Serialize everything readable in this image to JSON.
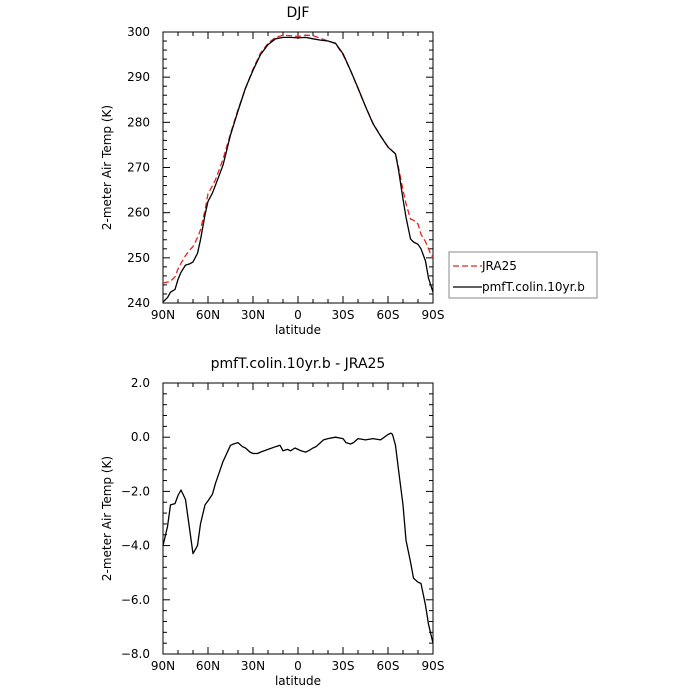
{
  "chart_data": [
    {
      "type": "line",
      "title": "DJF",
      "xlabel": "latitude",
      "ylabel": "2-meter Air Temp (K)",
      "xlim": [
        90,
        -90
      ],
      "ylim": [
        240,
        300
      ],
      "x_ticks": [
        90,
        60,
        30,
        0,
        -30,
        -60,
        -90
      ],
      "x_tick_labels": [
        "90N",
        "60N",
        "30N",
        "0",
        "30S",
        "60S",
        "90S"
      ],
      "y_ticks": [
        240,
        250,
        260,
        270,
        280,
        290,
        300
      ],
      "y_tick_labels": [
        "240",
        "250",
        "260",
        "270",
        "280",
        "290",
        "300"
      ],
      "legend": {
        "placement": "right",
        "entries": [
          "JRA25",
          "pmfT.colin.10yr.b"
        ]
      },
      "series": [
        {
          "name": "JRA25",
          "color": "#e0261e",
          "dash": "dashed",
          "x": [
            90,
            85,
            82,
            80,
            78,
            75,
            72,
            70,
            67,
            65,
            62,
            60,
            57,
            55,
            50,
            45,
            40,
            35,
            30,
            25,
            20,
            15,
            10,
            5,
            0,
            -5,
            -10,
            -15,
            -20,
            -25,
            -30,
            -35,
            -40,
            -45,
            -50,
            -55,
            -60,
            -65,
            -67,
            -70,
            -72,
            -75,
            -77,
            -80,
            -82,
            -85,
            -88,
            -90
          ],
          "y": [
            244.4,
            244.8,
            245.8,
            247.5,
            248.8,
            250.5,
            251.8,
            252.5,
            254.5,
            256.2,
            260.5,
            264.2,
            266.0,
            267.3,
            271.8,
            277.5,
            282.8,
            287.5,
            291.8,
            295.3,
            297.5,
            298.8,
            299.3,
            299.2,
            299.0,
            299.3,
            299.2,
            298.6,
            298.0,
            297.4,
            295.0,
            291.5,
            287.5,
            283.5,
            279.8,
            277.0,
            274.6,
            273.0,
            270.0,
            265.0,
            262.0,
            258.6,
            258.3,
            257.5,
            255.2,
            253.6,
            251.2,
            250.0
          ]
        },
        {
          "name": "pmfT.colin.10yr.b",
          "color": "#000000",
          "dash": "solid",
          "x": [
            90,
            87,
            85,
            82,
            80,
            78,
            75,
            72,
            70,
            67,
            65,
            62,
            60,
            57,
            55,
            50,
            45,
            40,
            35,
            30,
            25,
            20,
            15,
            10,
            5,
            0,
            -5,
            -10,
            -15,
            -20,
            -25,
            -30,
            -35,
            -40,
            -45,
            -50,
            -55,
            -60,
            -63,
            -65,
            -67,
            -70,
            -72,
            -75,
            -77,
            -80,
            -82,
            -85,
            -87,
            -90
          ],
          "y": [
            240.2,
            241.2,
            242.4,
            243.0,
            245.2,
            246.8,
            248.4,
            248.7,
            249.1,
            251.0,
            254.0,
            259.5,
            262.5,
            264.4,
            266.1,
            270.5,
            277.2,
            282.5,
            287.6,
            291.5,
            295.0,
            297.2,
            298.5,
            298.8,
            298.8,
            298.7,
            298.8,
            298.5,
            298.2,
            298.0,
            297.5,
            295.2,
            291.5,
            287.6,
            283.5,
            279.7,
            277.0,
            274.5,
            273.6,
            273.0,
            269.5,
            263.0,
            259.0,
            254.2,
            253.5,
            253.0,
            252.0,
            249.3,
            245.5,
            242.4
          ]
        }
      ]
    },
    {
      "type": "line",
      "title": "pmfT.colin.10yr.b - JRA25",
      "xlabel": "latitude",
      "ylabel": "2-meter Air Temp (K)",
      "xlim": [
        90,
        -90
      ],
      "ylim": [
        -8,
        2
      ],
      "x_ticks": [
        90,
        60,
        30,
        0,
        -30,
        -60,
        -90
      ],
      "x_tick_labels": [
        "90N",
        "60N",
        "30N",
        "0",
        "30S",
        "60S",
        "90S"
      ],
      "y_ticks": [
        -8,
        -6,
        -4,
        -2,
        0,
        2
      ],
      "y_tick_labels": [
        "−8.0",
        "−6.0",
        "−4.0",
        "−2.0",
        "0.0",
        "2.0"
      ],
      "series": [
        {
          "color": "#000000",
          "dash": "solid",
          "x": [
            90,
            87,
            85,
            82,
            80,
            78,
            75,
            72,
            70,
            67,
            65,
            62,
            60,
            57,
            55,
            50,
            45,
            43,
            40,
            37,
            35,
            32,
            30,
            27,
            25,
            20,
            15,
            12,
            10,
            7,
            5,
            2,
            0,
            -2,
            -5,
            -7,
            -10,
            -12,
            -15,
            -17,
            -20,
            -25,
            -30,
            -32,
            -35,
            -37,
            -40,
            -45,
            -50,
            -55,
            -60,
            -62,
            -63,
            -65,
            -67,
            -70,
            -72,
            -75,
            -77,
            -80,
            -82,
            -85,
            -87,
            -90
          ],
          "y": [
            -4.0,
            -3.3,
            -2.5,
            -2.45,
            -2.15,
            -1.95,
            -2.3,
            -3.5,
            -4.3,
            -4.0,
            -3.2,
            -2.5,
            -2.35,
            -2.1,
            -1.7,
            -0.9,
            -0.3,
            -0.25,
            -0.2,
            -0.35,
            -0.4,
            -0.55,
            -0.6,
            -0.6,
            -0.55,
            -0.45,
            -0.35,
            -0.3,
            -0.5,
            -0.45,
            -0.5,
            -0.4,
            -0.45,
            -0.5,
            -0.55,
            -0.5,
            -0.4,
            -0.35,
            -0.2,
            -0.1,
            -0.05,
            0.0,
            -0.05,
            -0.2,
            -0.25,
            -0.2,
            -0.05,
            -0.1,
            -0.05,
            -0.1,
            0.1,
            0.15,
            0.1,
            -0.3,
            -1.2,
            -2.5,
            -3.8,
            -4.6,
            -5.2,
            -5.35,
            -5.4,
            -6.2,
            -6.9,
            -7.6
          ]
        }
      ]
    }
  ]
}
